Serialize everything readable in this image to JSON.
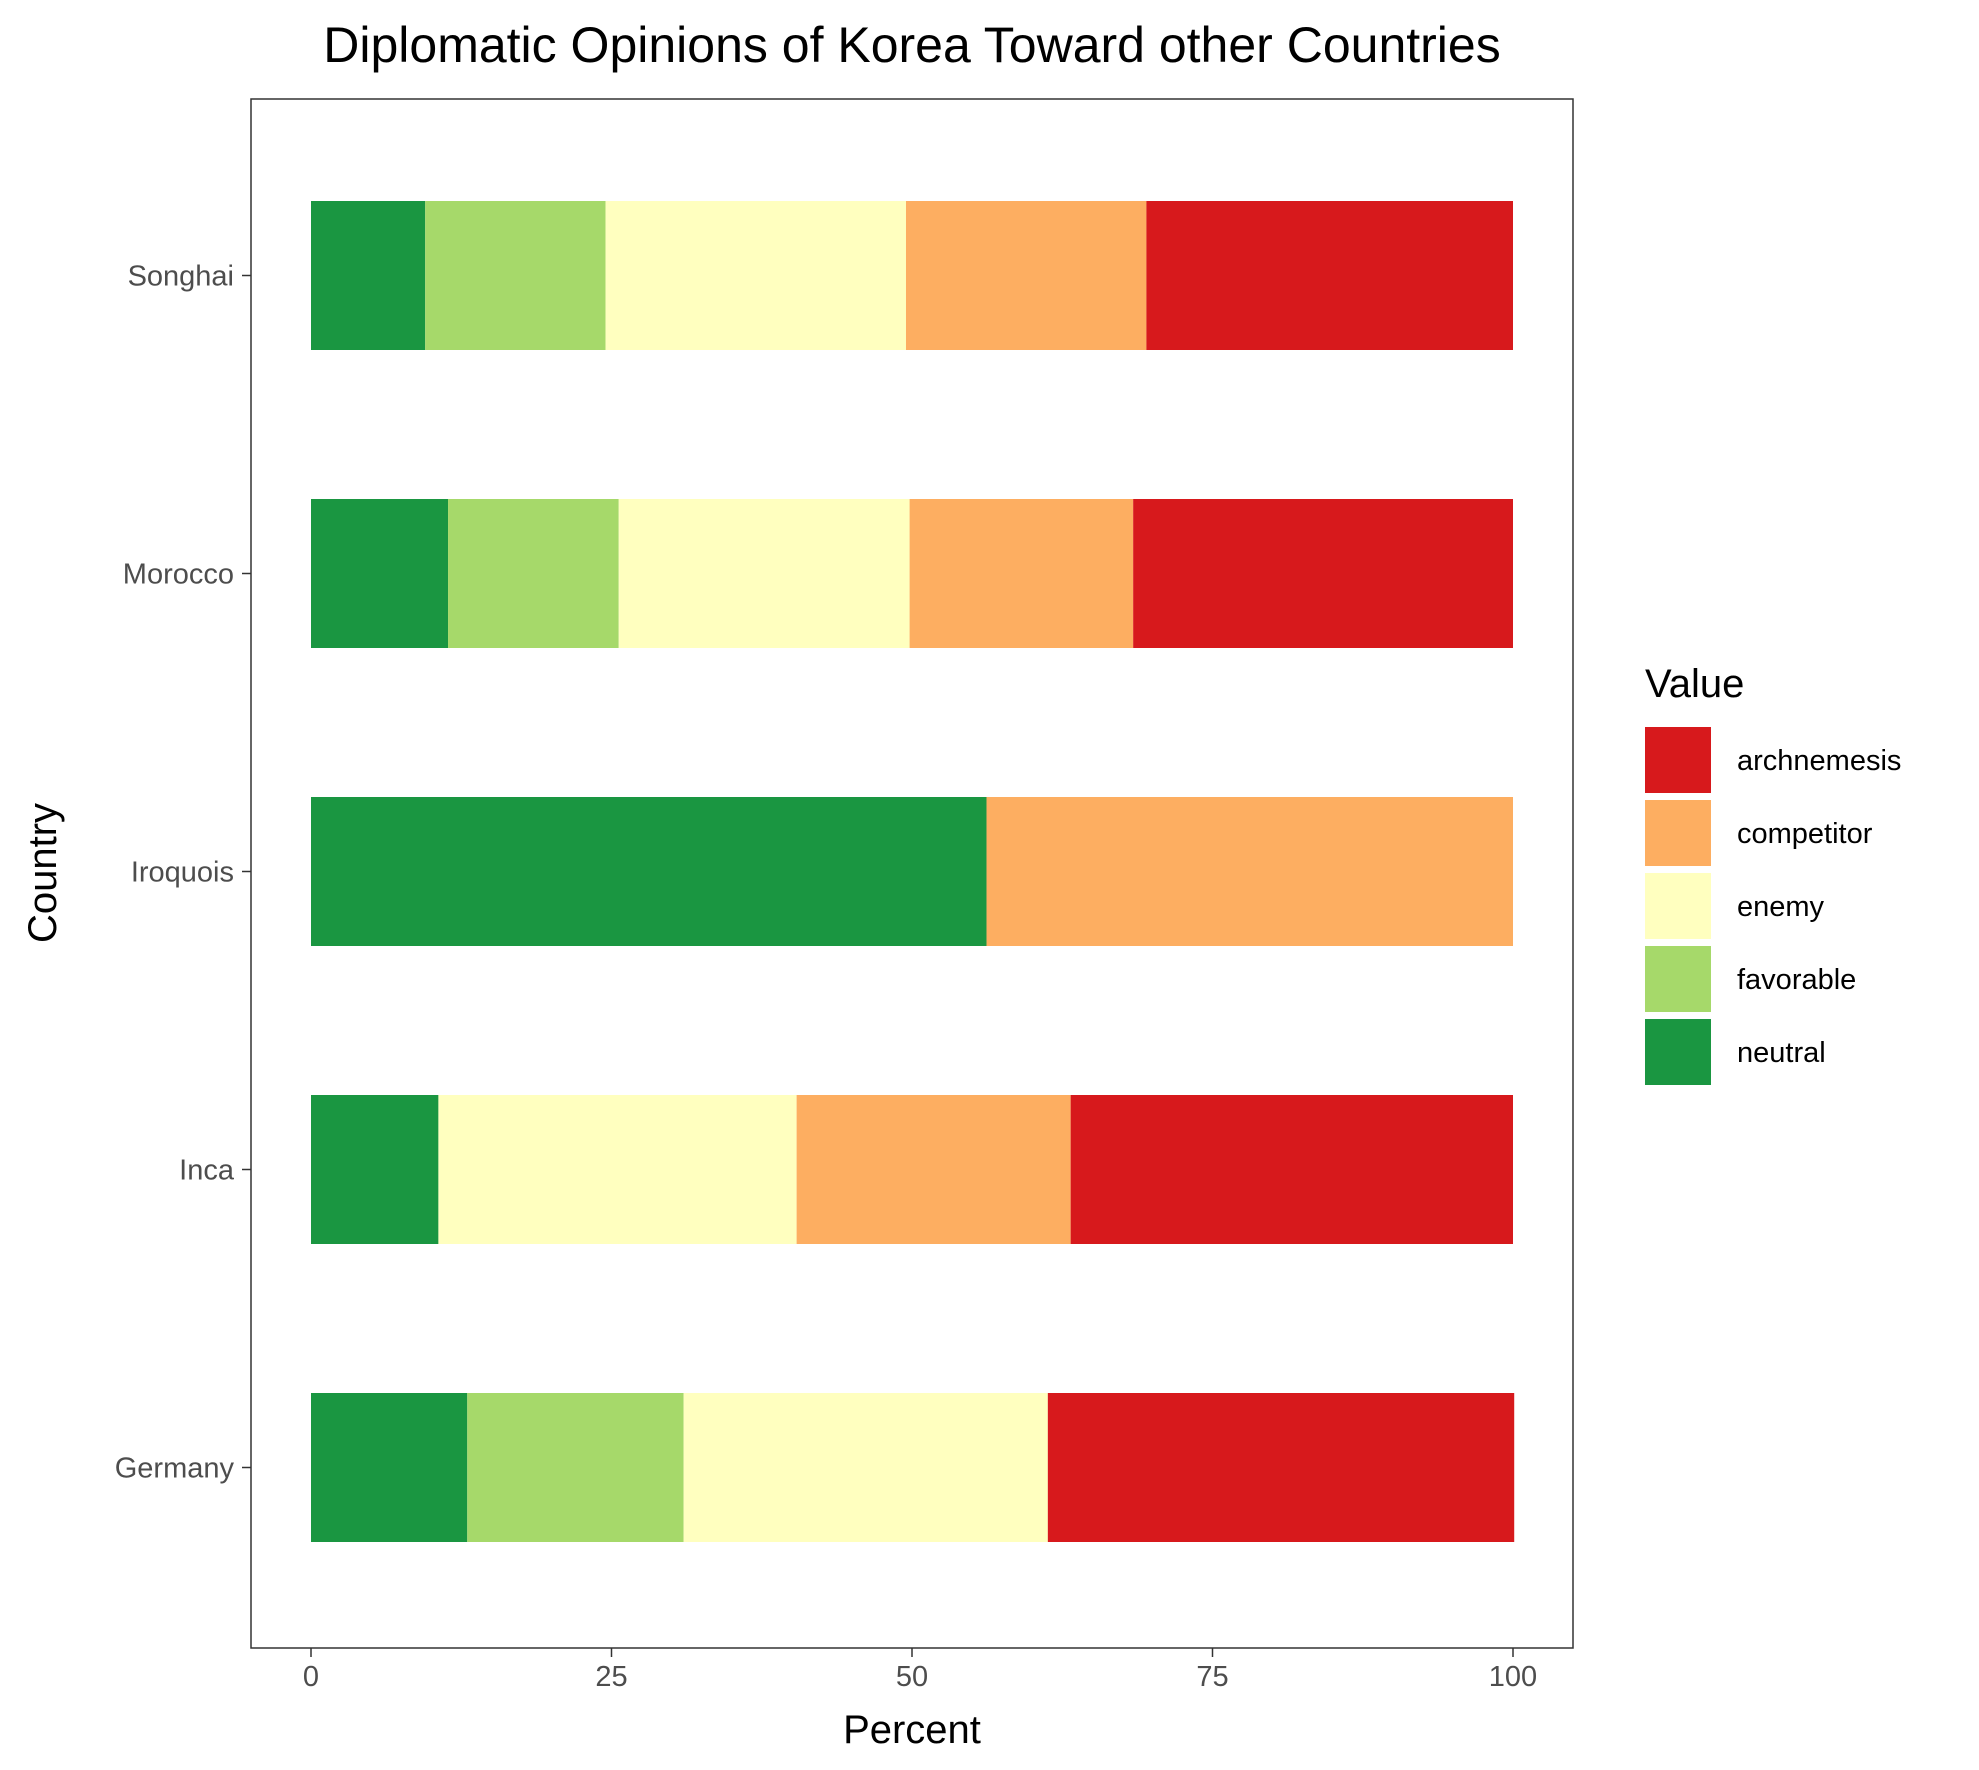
{
  "chart_data": {
    "type": "bar",
    "orientation": "horizontal",
    "stacked": true,
    "title": "Diplomatic Opinions of Korea Toward other Countries",
    "xlabel": "Percent",
    "ylabel": "Country",
    "xlim": [
      0,
      100
    ],
    "xticks": [
      0,
      25,
      50,
      75,
      100
    ],
    "grid": false,
    "legend_title": "Value",
    "legend_position": "right",
    "categories": [
      "Songhai",
      "Morocco",
      "Iroquois",
      "Inca",
      "Germany"
    ],
    "stack_order": [
      "neutral",
      "favorable",
      "enemy",
      "competitor",
      "archnemesis"
    ],
    "series": [
      {
        "name": "archnemesis",
        "color": "#d7191c",
        "values": [
          30.5,
          31.6,
          0,
          36.8,
          38.8
        ]
      },
      {
        "name": "competitor",
        "color": "#fdae61",
        "values": [
          20.0,
          18.6,
          43.8,
          22.8,
          0
        ]
      },
      {
        "name": "enemy",
        "color": "#ffffbf",
        "values": [
          25.0,
          24.2,
          0,
          29.8,
          30.3
        ]
      },
      {
        "name": "favorable",
        "color": "#a6d96a",
        "values": [
          15.0,
          14.2,
          0,
          0,
          18.0
        ]
      },
      {
        "name": "neutral",
        "color": "#1a9641",
        "values": [
          9.5,
          11.4,
          56.2,
          10.6,
          13.0
        ]
      }
    ]
  }
}
